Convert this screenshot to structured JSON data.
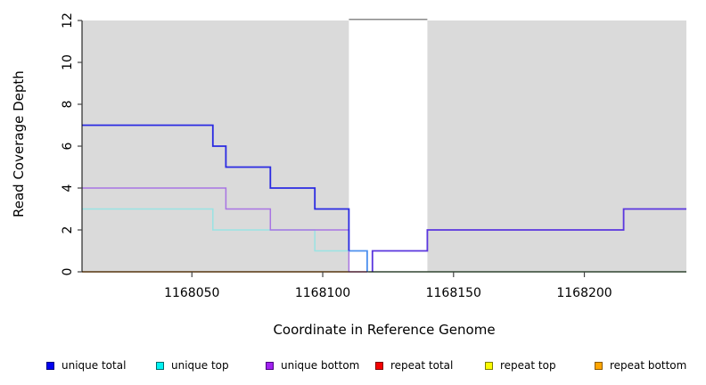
{
  "chart_data": {
    "type": "line",
    "title": "",
    "xlabel": "Coordinate in Reference Genome",
    "ylabel": "Read Coverage Depth",
    "xlim": [
      1168008,
      1168239
    ],
    "ylim": [
      0,
      12
    ],
    "x_ticks": [
      1168050,
      1168100,
      1168150,
      1168200
    ],
    "y_ticks": [
      0,
      2,
      4,
      6,
      8,
      10,
      12
    ],
    "grid": false,
    "legend_position": "bottom",
    "step_mode": "post",
    "series": [
      {
        "name": "unique total",
        "color": "#0000EE",
        "steps": [
          [
            1168008,
            7
          ],
          [
            1168058,
            6
          ],
          [
            1168063,
            5
          ],
          [
            1168080,
            4
          ],
          [
            1168097,
            3
          ],
          [
            1168110,
            1
          ],
          [
            1168117,
            0
          ],
          [
            1168119,
            1
          ],
          [
            1168140,
            2
          ],
          [
            1168215,
            3
          ],
          [
            1168239,
            3
          ]
        ]
      },
      {
        "name": "unique top",
        "color": "#00EEEE",
        "steps": [
          [
            1168008,
            3
          ],
          [
            1168058,
            2
          ],
          [
            1168097,
            1
          ],
          [
            1168117,
            0
          ],
          [
            1168239,
            0
          ]
        ]
      },
      {
        "name": "unique bottom",
        "color": "#A020F0",
        "steps": [
          [
            1168008,
            4
          ],
          [
            1168063,
            3
          ],
          [
            1168080,
            2
          ],
          [
            1168110,
            0
          ],
          [
            1168119,
            1
          ],
          [
            1168140,
            2
          ],
          [
            1168215,
            3
          ],
          [
            1168239,
            3
          ]
        ]
      },
      {
        "name": "repeat total",
        "color": "#EE0000",
        "steps": [
          [
            1168008,
            0
          ],
          [
            1168239,
            0
          ]
        ]
      },
      {
        "name": "repeat top",
        "color": "#F5F500",
        "steps": [
          [
            1168008,
            0
          ],
          [
            1168239,
            0
          ]
        ]
      },
      {
        "name": "repeat bottom",
        "color": "#FFA500",
        "steps": [
          [
            1168008,
            0
          ],
          [
            1168239,
            0
          ]
        ]
      }
    ],
    "shaded_regions": [
      {
        "from": 1168008,
        "to": 1168110,
        "color": "#DADADA"
      },
      {
        "from": 1168140,
        "to": 1168239,
        "color": "#DADADA"
      }
    ],
    "render_segments": [
      {
        "name": "repeat-bottom-zero-line",
        "color": "#FF9E2C",
        "width": 1.6,
        "points": [
          [
            1168008,
            0
          ],
          [
            1168110,
            0
          ]
        ]
      },
      {
        "name": "zero-line-pink-blend",
        "color": "#DD5F8E",
        "width": 1.6,
        "points": [
          [
            1168110,
            0
          ],
          [
            1168117,
            0
          ]
        ]
      },
      {
        "name": "zero-line-green-blend",
        "color": "#8FCE8F",
        "width": 1.6,
        "points": [
          [
            1168117.5,
            0
          ],
          [
            1168239,
            0
          ]
        ]
      },
      {
        "name": "unique-top-line",
        "color": "#99E3E3",
        "width": 1.5,
        "points": [
          [
            1168008,
            3
          ],
          [
            1168058,
            3
          ],
          [
            1168058,
            2
          ],
          [
            1168097,
            2
          ],
          [
            1168097,
            1
          ],
          [
            1168110,
            1
          ]
        ]
      },
      {
        "name": "unique-bottom-line",
        "color": "#A874E3",
        "width": 1.5,
        "points": [
          [
            1168008,
            4
          ],
          [
            1168063,
            4
          ],
          [
            1168063,
            3
          ],
          [
            1168080,
            3
          ],
          [
            1168080,
            2
          ],
          [
            1168110,
            2
          ],
          [
            1168110,
            0
          ]
        ]
      },
      {
        "name": "total-notch-light-blue",
        "color": "#4D90EE",
        "width": 1.8,
        "points": [
          [
            1168110,
            1
          ],
          [
            1168117,
            1
          ],
          [
            1168117,
            0
          ]
        ]
      },
      {
        "name": "unique-total-line",
        "color": "#2A2AE2",
        "width": 1.8,
        "points": [
          [
            1168008,
            7
          ],
          [
            1168058,
            7
          ],
          [
            1168058,
            6
          ],
          [
            1168063,
            6
          ],
          [
            1168063,
            5
          ],
          [
            1168080,
            5
          ],
          [
            1168080,
            4
          ],
          [
            1168097,
            4
          ],
          [
            1168097,
            3
          ],
          [
            1168110,
            3
          ],
          [
            1168110,
            1
          ]
        ]
      },
      {
        "name": "total-bottom-overlap-line",
        "color": "#5A36DE",
        "width": 1.8,
        "points": [
          [
            1168119,
            0
          ],
          [
            1168119,
            1
          ],
          [
            1168140,
            1
          ],
          [
            1168140,
            2
          ],
          [
            1168215,
            2
          ],
          [
            1168215,
            3
          ],
          [
            1168239,
            3
          ]
        ]
      },
      {
        "name": "clipped-depth-line",
        "color": "#8A8A8A",
        "width": 1.5,
        "points": [
          [
            1168110,
            12.05
          ],
          [
            1168140,
            12.05
          ]
        ]
      }
    ],
    "axis_color": "#000000",
    "tick_color": "#444444"
  },
  "legend": {
    "items": [
      {
        "label": "unique total",
        "fill": "#0202F0",
        "border": "#000080"
      },
      {
        "label": "unique top",
        "fill": "#00F2F2",
        "border": "#006A6A"
      },
      {
        "label": "unique bottom",
        "fill": "#A121F0",
        "border": "#4B0082"
      },
      {
        "label": "repeat total",
        "fill": "#F40000",
        "border": "#7E0000"
      },
      {
        "label": "repeat top",
        "fill": "#FBFB00",
        "border": "#7E7E00"
      },
      {
        "label": "repeat bottom",
        "fill": "#FFA500",
        "border": "#8B5A00"
      }
    ]
  }
}
